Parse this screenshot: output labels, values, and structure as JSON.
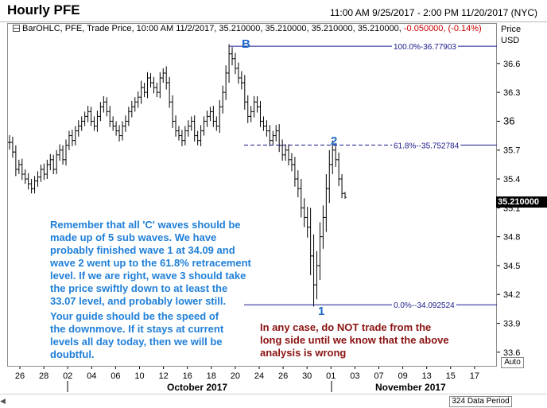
{
  "header": {
    "title": "Hourly PFE",
    "time_range": "11:00 AM 9/25/2017 - 2:00 PM 11/20/2017 (NYC)"
  },
  "info_line": {
    "prefix": "BarOHLC, PFE, Trade Price, 10:00 AM 11/2/2017, 35.210000, 35.210000, 35.210000, 35.210000,",
    "change": "-0.050000, (-0.14%)"
  },
  "price_axis_header": {
    "line1": "Price",
    "line2": "USD"
  },
  "current_price": "35.210000",
  "auto_label": "Auto",
  "data_period": "324 Data Period",
  "annotations": {
    "blue_note_1": [
      "Remember that all 'C' waves should be",
      "made up of 5 sub waves. We have",
      "probably finished wave 1 at 34.09 and",
      "wave 2 went up to the 61.8% retracement",
      "level. If we are right, wave 3 should take",
      "the price swiftly down to at least the",
      "33.07 level, and probably lower still."
    ],
    "blue_note_2": [
      "Your guide should be the speed of",
      "the downmove. If it stays at current",
      "levels all day today, then we will be",
      "doubtful."
    ],
    "red_note": [
      "In any case, do NOT trade from the",
      "long side until we know that the above",
      "analysis is wrong"
    ],
    "wave_B": "B",
    "wave_1": "1",
    "wave_2": "2"
  },
  "chart_data": {
    "type": "bar",
    "series_type": "OHLC",
    "y_ticks": [
      33.6,
      33.9,
      34.2,
      34.5,
      34.8,
      35.1,
      35.4,
      35.7,
      36,
      36.3,
      36.6
    ],
    "y_tick_labels": [
      "33.6",
      "33.9",
      "34.2",
      "34.5",
      "34.8",
      "35.1",
      "35.4",
      "35.7",
      "36",
      "36.3",
      "36.6"
    ],
    "ylim": [
      33.45,
      37.02
    ],
    "x_tick_labels": [
      "26",
      "28",
      "02",
      "04",
      "06",
      "10",
      "12",
      "16",
      "18",
      "20",
      "24",
      "26",
      "30",
      "01",
      "03",
      "07",
      "09",
      "13",
      "15",
      "17"
    ],
    "month_labels": [
      "October 2017",
      "November 2017"
    ],
    "fib_levels": [
      {
        "label": "100.0%-36.77903",
        "value": 36.77903,
        "style": "solid"
      },
      {
        "label": "61.8%--35.752784",
        "value": 35.752784,
        "style": "dashed"
      },
      {
        "label": "0.0%--34.092524",
        "value": 34.092524,
        "style": "solid"
      }
    ],
    "closes": [
      35.78,
      35.68,
      35.5,
      35.55,
      35.45,
      35.4,
      35.35,
      35.3,
      35.38,
      35.42,
      35.5,
      35.45,
      35.55,
      35.6,
      35.5,
      35.65,
      35.7,
      35.6,
      35.75,
      35.85,
      35.8,
      35.9,
      35.95,
      36.0,
      36.05,
      36.1,
      36.0,
      35.95,
      36.05,
      36.15,
      36.2,
      36.1,
      36.0,
      35.95,
      35.9,
      35.85,
      35.95,
      36.0,
      36.1,
      36.15,
      36.2,
      36.25,
      36.35,
      36.3,
      36.45,
      36.4,
      36.35,
      36.3,
      36.45,
      36.5,
      36.4,
      36.2,
      36.0,
      35.9,
      35.85,
      35.8,
      35.9,
      35.95,
      36.0,
      35.85,
      35.8,
      35.9,
      36.0,
      36.05,
      36.1,
      36.0,
      35.95,
      36.15,
      36.3,
      36.5,
      36.7,
      36.65,
      36.55,
      36.45,
      36.4,
      36.2,
      36.05,
      36.1,
      36.2,
      36.15,
      36.0,
      35.95,
      35.9,
      35.8,
      35.85,
      35.9,
      35.75,
      35.65,
      35.7,
      35.6,
      35.55,
      35.4,
      35.3,
      35.1,
      35.0,
      34.9,
      34.6,
      34.3,
      34.5,
      34.8,
      35.0,
      35.3,
      35.55,
      35.7,
      35.6,
      35.4,
      35.25,
      35.21
    ],
    "ranges": [
      0.15,
      0.12,
      0.14,
      0.1,
      0.12,
      0.1,
      0.12,
      0.1,
      0.1,
      0.12,
      0.1,
      0.12,
      0.1,
      0.12,
      0.1,
      0.1,
      0.12,
      0.1,
      0.12,
      0.1,
      0.12,
      0.1,
      0.12,
      0.1,
      0.1,
      0.12,
      0.1,
      0.1,
      0.12,
      0.1,
      0.12,
      0.1,
      0.12,
      0.1,
      0.1,
      0.12,
      0.1,
      0.12,
      0.1,
      0.12,
      0.1,
      0.12,
      0.14,
      0.1,
      0.12,
      0.1,
      0.12,
      0.1,
      0.12,
      0.1,
      0.14,
      0.12,
      0.14,
      0.12,
      0.1,
      0.12,
      0.1,
      0.12,
      0.1,
      0.12,
      0.1,
      0.12,
      0.1,
      0.12,
      0.1,
      0.12,
      0.1,
      0.14,
      0.14,
      0.16,
      0.2,
      0.14,
      0.12,
      0.12,
      0.14,
      0.16,
      0.14,
      0.12,
      0.12,
      0.12,
      0.12,
      0.1,
      0.12,
      0.12,
      0.1,
      0.12,
      0.14,
      0.12,
      0.12,
      0.12,
      0.14,
      0.16,
      0.18,
      0.2,
      0.2,
      0.22,
      0.4,
      0.45,
      0.3,
      0.3,
      0.25,
      0.3,
      0.3,
      0.2,
      0.15,
      0.15,
      0.1,
      0.03
    ]
  }
}
